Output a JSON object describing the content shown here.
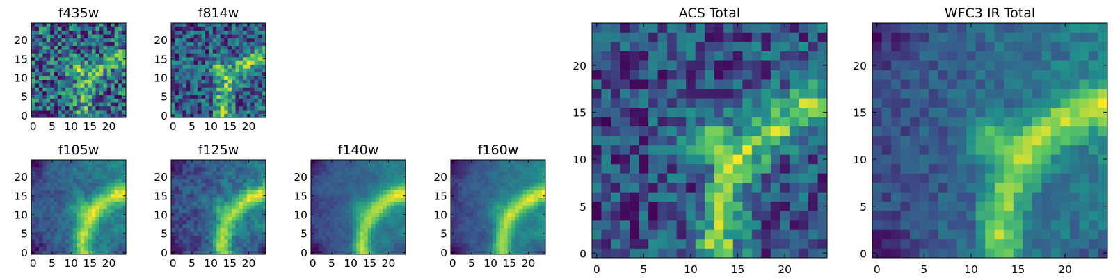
{
  "figure": {
    "colormap": "viridis",
    "colormap_stops": [
      "#440154",
      "#3b528b",
      "#21918c",
      "#5ec962",
      "#fde725"
    ]
  },
  "chart_data": [
    {
      "type": "heatmap",
      "title": "f435w",
      "grid": false,
      "xlim": [
        -0.5,
        24.5
      ],
      "ylim": [
        -0.5,
        24.5
      ],
      "xticks": [
        0,
        5,
        10,
        15,
        20
      ],
      "yticks": [
        0,
        5,
        10,
        15,
        20
      ],
      "structure": {
        "noise": 0.3,
        "blob": 0.35,
        "arc": 0.25,
        "side_fade": 0.0,
        "corner": 0.0,
        "smooth": 0.0,
        "base": 0.55
      },
      "description_of_values": "25x25 pixel cutout, values shown as colour only"
    },
    {
      "type": "heatmap",
      "title": "f814w",
      "grid": false,
      "xlim": [
        -0.5,
        24.5
      ],
      "ylim": [
        -0.5,
        24.5
      ],
      "xticks": [
        0,
        5,
        10,
        15,
        20
      ],
      "yticks": [
        0,
        5,
        10,
        15,
        20
      ],
      "structure": {
        "noise": 0.28,
        "blob": 0.4,
        "arc": 0.45,
        "side_fade": 0.05,
        "corner": 0.0,
        "smooth": 0.0,
        "base": 0.48
      }
    },
    {
      "type": "heatmap",
      "title": "f105w",
      "grid": false,
      "xlim": [
        -0.5,
        24.5
      ],
      "ylim": [
        -0.5,
        24.5
      ],
      "xticks": [
        0,
        5,
        10,
        15,
        20
      ],
      "yticks": [
        0,
        5,
        10,
        15,
        20
      ],
      "structure": {
        "noise": 0.16,
        "blob": 0.35,
        "arc": 0.6,
        "side_fade": 0.25,
        "corner": 0.25,
        "smooth": 0.5,
        "base": 0.4
      }
    },
    {
      "type": "heatmap",
      "title": "f125w",
      "grid": false,
      "xlim": [
        -0.5,
        24.5
      ],
      "ylim": [
        -0.5,
        24.5
      ],
      "xticks": [
        0,
        5,
        10,
        15,
        20
      ],
      "yticks": [
        0,
        5,
        10,
        15,
        20
      ],
      "structure": {
        "noise": 0.18,
        "blob": 0.3,
        "arc": 0.6,
        "side_fade": 0.2,
        "corner": 0.25,
        "smooth": 0.45,
        "base": 0.42
      }
    },
    {
      "type": "heatmap",
      "title": "f140w",
      "grid": false,
      "xlim": [
        -0.5,
        24.5
      ],
      "ylim": [
        -0.5,
        24.5
      ],
      "xticks": [
        0,
        5,
        10,
        15,
        20
      ],
      "yticks": [
        0,
        5,
        10,
        15,
        20
      ],
      "structure": {
        "noise": 0.12,
        "blob": 0.3,
        "arc": 0.65,
        "side_fade": 0.3,
        "corner": 0.25,
        "smooth": 0.6,
        "base": 0.38
      }
    },
    {
      "type": "heatmap",
      "title": "f160w",
      "grid": false,
      "xlim": [
        -0.5,
        24.5
      ],
      "ylim": [
        -0.5,
        24.5
      ],
      "xticks": [
        0,
        5,
        10,
        15,
        20
      ],
      "yticks": [
        0,
        5,
        10,
        15,
        20
      ],
      "structure": {
        "noise": 0.14,
        "blob": 0.3,
        "arc": 0.7,
        "side_fade": 0.4,
        "corner": 0.3,
        "smooth": 0.6,
        "base": 0.3
      }
    },
    {
      "type": "heatmap",
      "title": "ACS Total",
      "grid": false,
      "xlim": [
        -0.5,
        24.5
      ],
      "ylim": [
        -0.5,
        24.5
      ],
      "xticks": [
        0,
        5,
        10,
        15,
        20
      ],
      "yticks": [
        0,
        5,
        10,
        15,
        20
      ],
      "structure": {
        "noise": 0.22,
        "blob": 0.42,
        "arc": 0.5,
        "side_fade": 0.05,
        "corner": 0.0,
        "smooth": 0.0,
        "base": 0.5
      }
    },
    {
      "type": "heatmap",
      "title": "WFC3 IR Total",
      "grid": false,
      "xlim": [
        -0.5,
        24.5
      ],
      "ylim": [
        -0.5,
        24.5
      ],
      "xticks": [
        0,
        5,
        10,
        15,
        20
      ],
      "yticks": [
        0,
        5,
        10,
        15,
        20
      ],
      "structure": {
        "noise": 0.16,
        "blob": 0.55,
        "arc": 0.75,
        "side_fade": 0.35,
        "corner": 0.25,
        "smooth": 0.0,
        "base": 0.32
      }
    }
  ]
}
